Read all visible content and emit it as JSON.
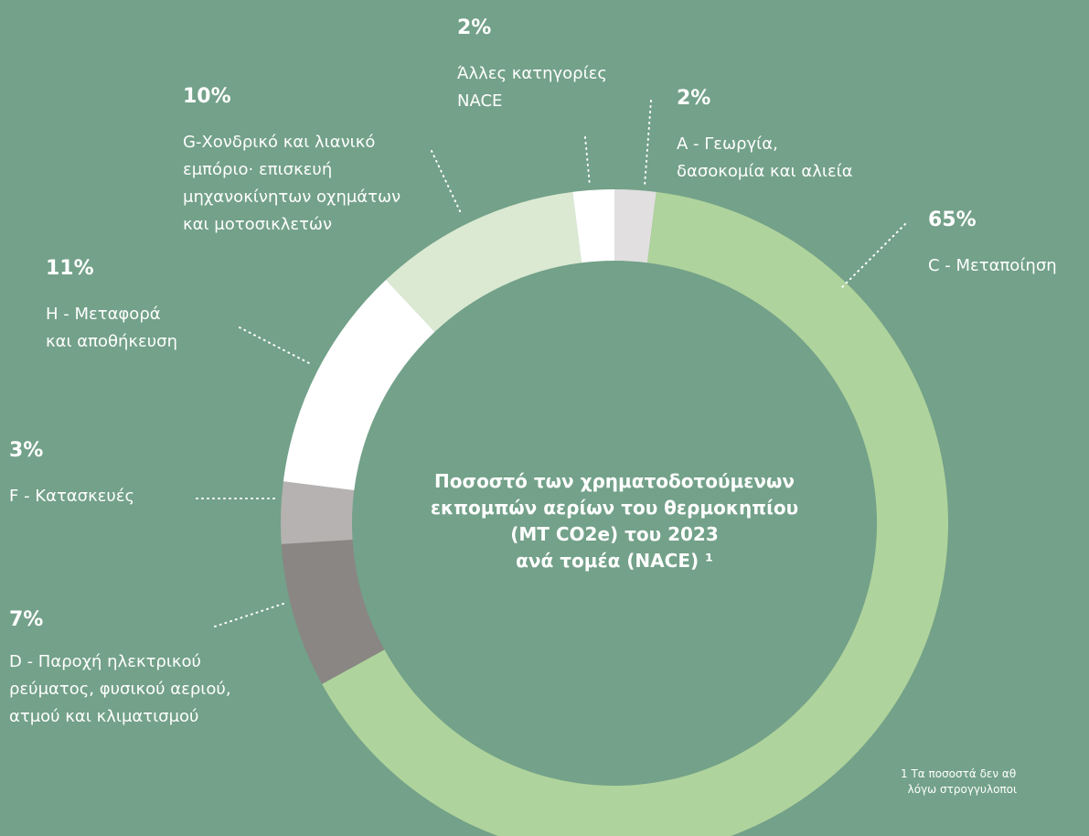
{
  "chart_data": {
    "type": "donut",
    "title": "Ποσοστό των χρηματοδοτούμενων\nεκπομπών αερίων του θερμοκηπίου\n(MT CO2e) του 2023\nανά τομέα (NACE) ¹",
    "categories": [
      "A - Γεωργία,\nδασοκομία και αλιεία",
      "C - Μεταποίηση",
      "D - Παροχή ηλεκτρικού\nρεύματος, φυσικού αεριού,\nατμού και κλιματισμού",
      "F - Κατασκευές",
      "H - Μεταφορά\nκαι αποθήκευση",
      "G-Χονδρικό και λιανικό\nεμπόριο· επισκευή\nμηχανοκίνητων οχημάτων\nκαι μοτοσικλετών",
      "Άλλες κατηγορίες\nNACE"
    ],
    "values": [
      2,
      65,
      7,
      3,
      11,
      10,
      2
    ],
    "value_labels": [
      "2%",
      "65%",
      "7%",
      "3%",
      "11%",
      "10%",
      "2%"
    ],
    "colors": [
      "#e1dfe0",
      "#afd39c",
      "#8a8683",
      "#b5b2b1",
      "#ffffff",
      "#dbe9d2",
      "#ffffff"
    ],
    "footnote": "1 Τα ποσοστά δεν αθ\n  λόγω στρογγυλοποι"
  }
}
